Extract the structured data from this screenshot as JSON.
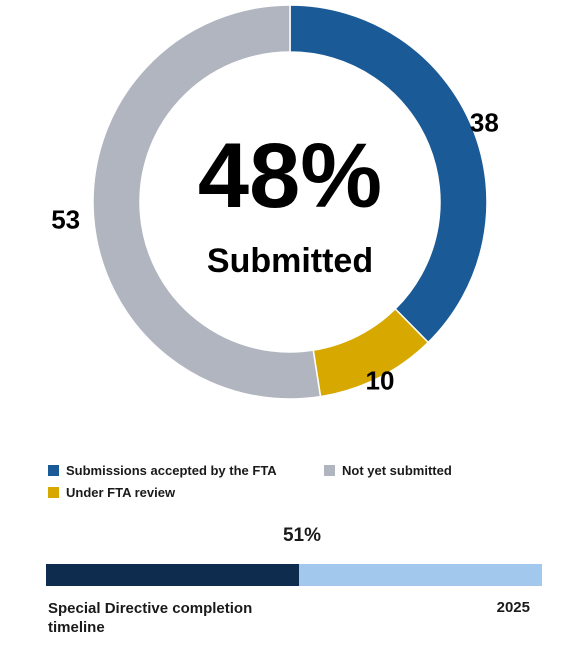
{
  "chart_data": {
    "type": "pie",
    "donut": true,
    "categories": [
      "Submissions accepted by the FTA",
      "Under FTA review",
      "Not yet submitted"
    ],
    "values": [
      38,
      10,
      53
    ],
    "colors": [
      "#1a5a96",
      "#d7a900",
      "#b1b5bf"
    ],
    "value_labels": [
      "38",
      "10",
      "53"
    ],
    "center_value": "48%",
    "center_label": "Submitted",
    "legend": {
      "items": [
        {
          "label": "Submissions accepted by the FTA",
          "color": "#1a5a96"
        },
        {
          "label": "Not yet submitted",
          "color": "#b1b5bf"
        },
        {
          "label": "Under FTA review",
          "color": "#d7a900"
        }
      ],
      "placement": "bottom"
    }
  },
  "timeline": {
    "percent_label": "51%",
    "progress": 0.51,
    "label": "Special Directive completion timeline",
    "end_label": "2025",
    "fill_color": "#0e2c4e",
    "track_color": "#a3c8ee"
  }
}
